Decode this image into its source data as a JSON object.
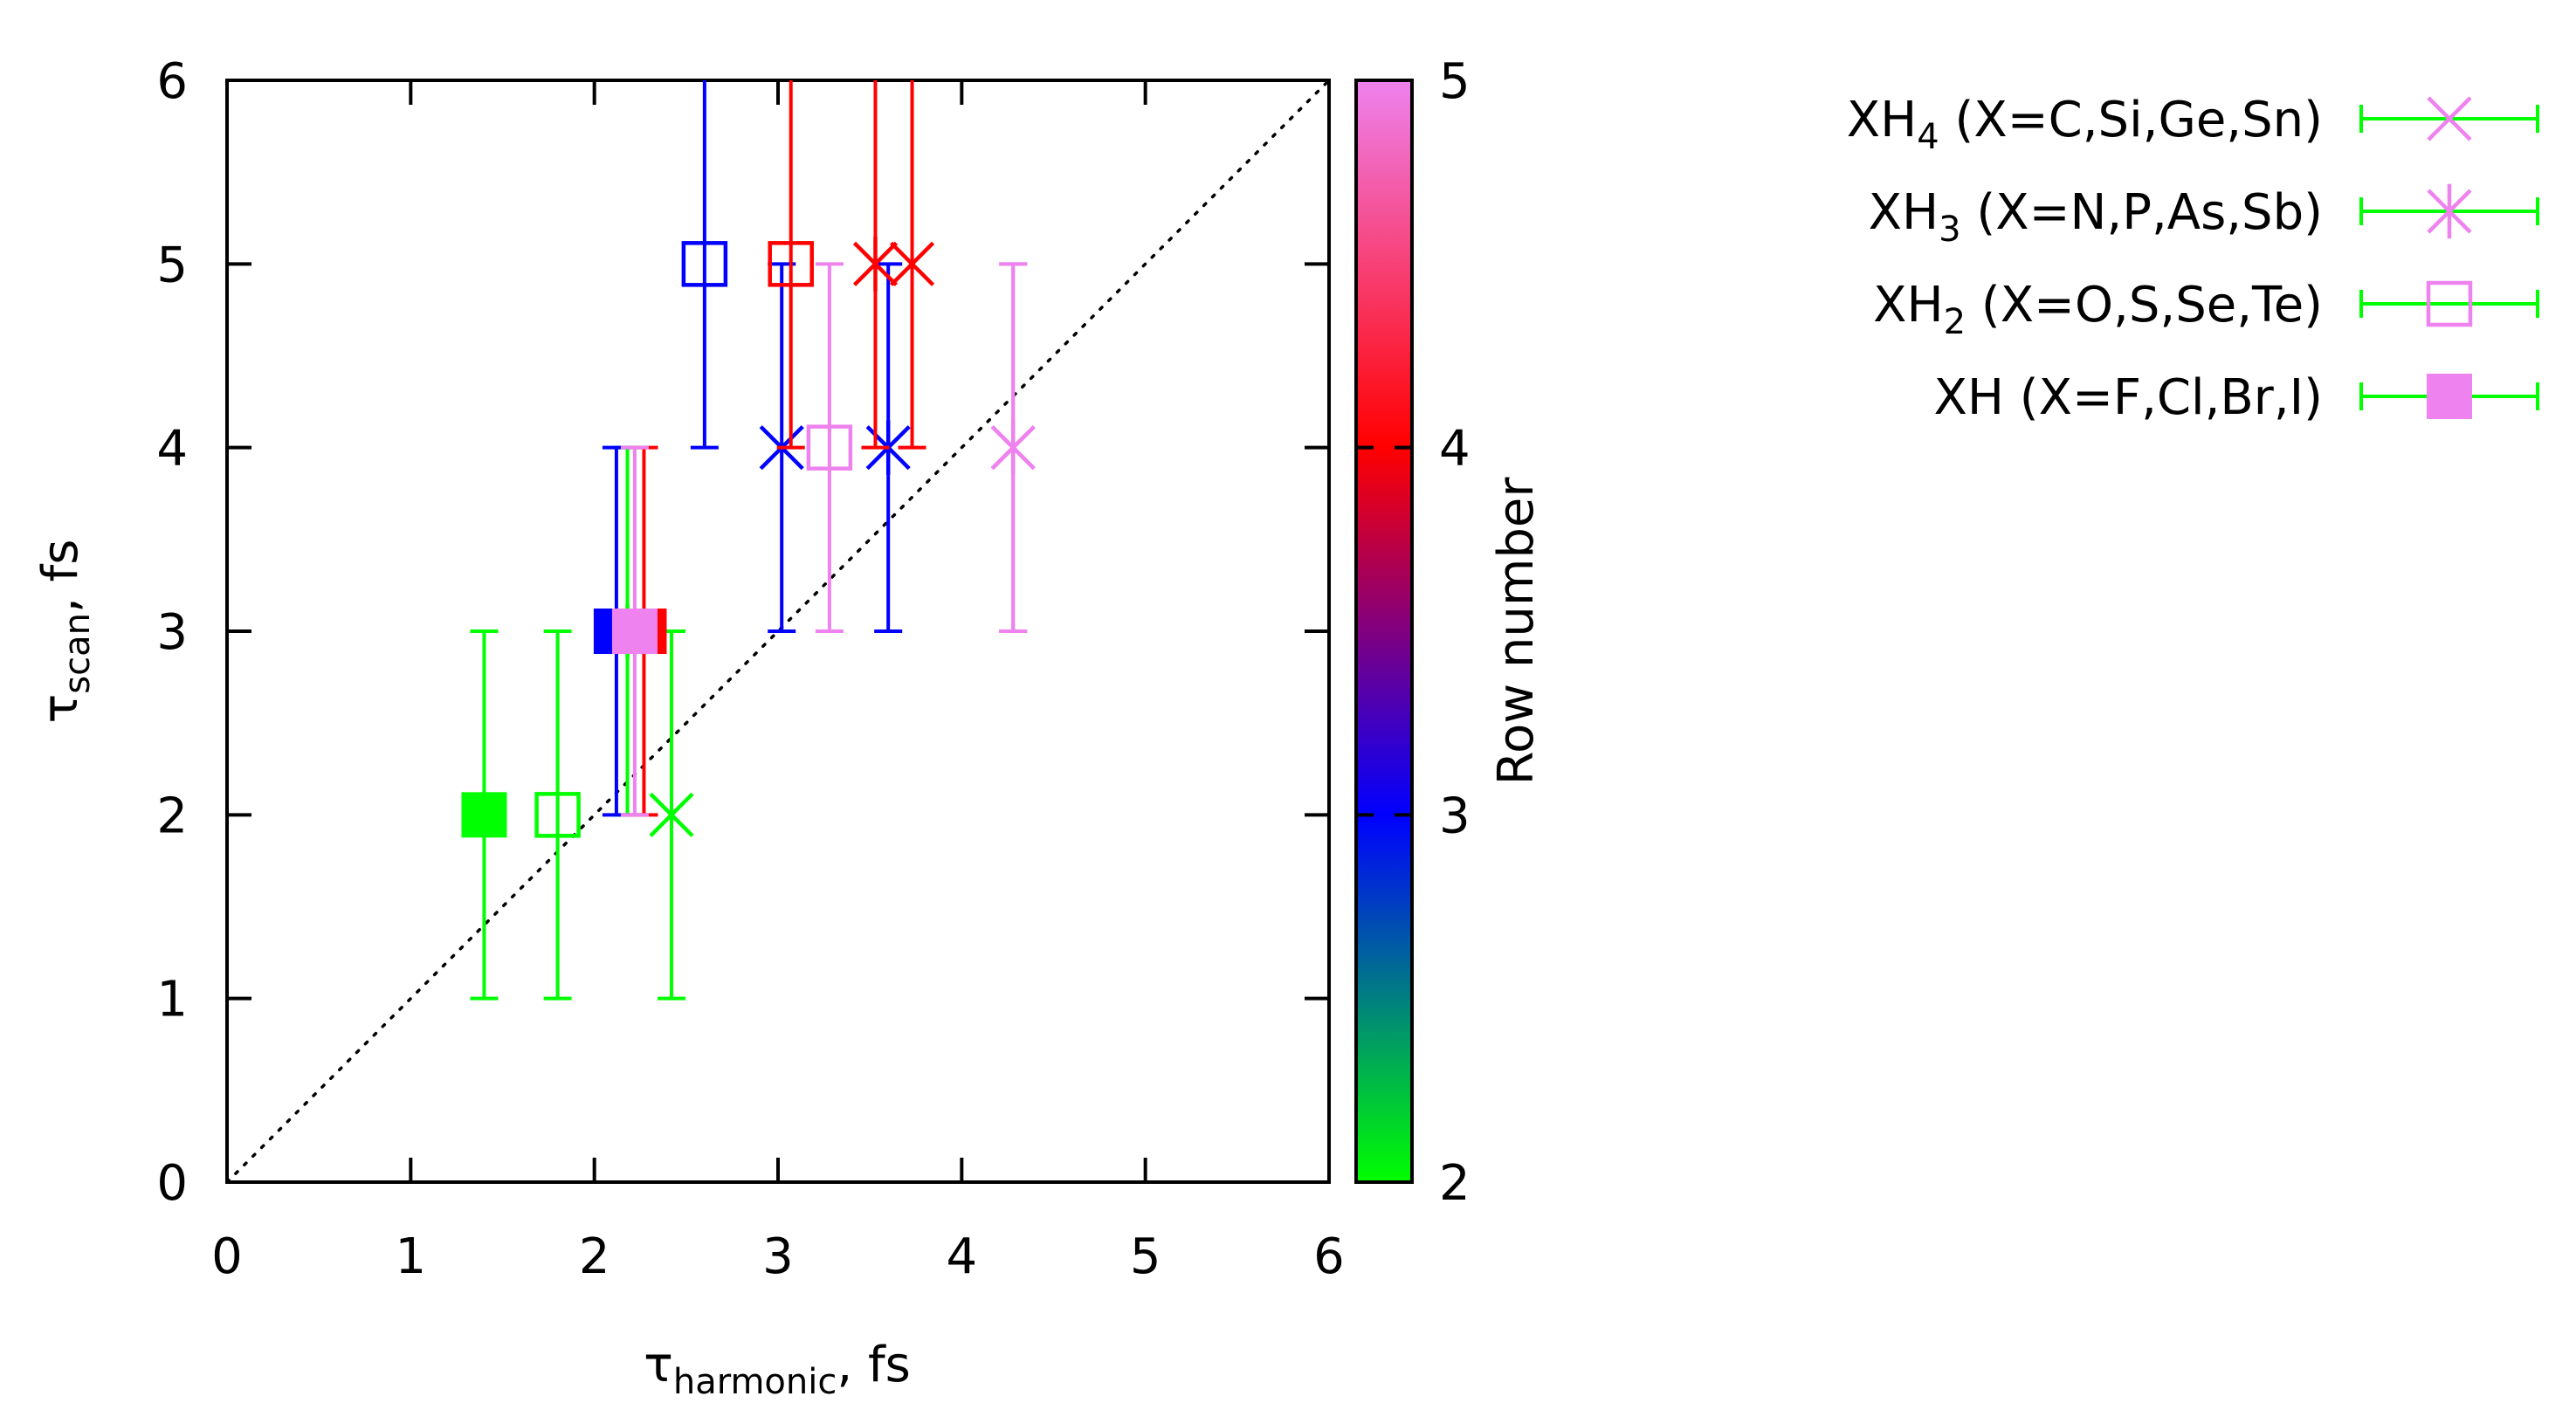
{
  "chart_data": {
    "type": "scatter",
    "xlabel": {
      "main": "τ",
      "sub": "harmonic",
      "unit": ", fs"
    },
    "ylabel": {
      "main": "τ",
      "sub": "scan",
      "unit": ", fs"
    },
    "xlim": [
      0,
      6
    ],
    "ylim": [
      0,
      6
    ],
    "x_ticks": [
      "0",
      "1",
      "2",
      "3",
      "4",
      "5",
      "6"
    ],
    "y_ticks": [
      "0",
      "1",
      "2",
      "3",
      "4",
      "5",
      "6"
    ],
    "diagonal": "y = x (dotted)",
    "colorbar": {
      "label": "Row number",
      "range": [
        2,
        5
      ],
      "ticks": [
        "2",
        "3",
        "4",
        "5"
      ],
      "stops": [
        "#00ff00",
        "#0000ff",
        "#ff0000",
        "#ee82ee"
      ]
    },
    "series": [
      {
        "name": "XH4 (X=C,Si,Ge,Sn)",
        "legend": {
          "pre": "XH",
          "sub": "4",
          "post": " (X=C,Si,Ge,Sn)"
        },
        "marker": "x",
        "points": [
          {
            "row": 2,
            "x": 2.42,
            "y": 2,
            "ylo": 1,
            "yhi": 3
          },
          {
            "row": 3,
            "x": 3.02,
            "y": 4,
            "ylo": 3,
            "yhi": 5
          },
          {
            "row": 4,
            "x": 3.73,
            "y": 5,
            "ylo": 4,
            "yhi": 6
          },
          {
            "row": 5,
            "x": 4.28,
            "y": 4,
            "ylo": 3,
            "yhi": 5
          }
        ]
      },
      {
        "name": "XH3 (X=N,P,As,Sb)",
        "legend": {
          "pre": "XH",
          "sub": "3",
          "post": " (X=N,P,As,Sb)"
        },
        "marker": "star",
        "points": [
          {
            "row": 2,
            "x": 2.18,
            "y": 3,
            "ylo": 2,
            "yhi": 4
          },
          {
            "row": 3,
            "x": 3.6,
            "y": 4,
            "ylo": 3,
            "yhi": 5
          },
          {
            "row": 4,
            "x": 3.53,
            "y": 5,
            "ylo": 4,
            "yhi": 6
          },
          {
            "row": 5,
            "x": 4.28,
            "y": 4,
            "ylo": 3,
            "yhi": 5
          }
        ]
      },
      {
        "name": "XH2 (X=O,S,Se,Te)",
        "legend": {
          "pre": "XH",
          "sub": "2",
          "post": " (X=O,S,Se,Te)"
        },
        "marker": "open-square",
        "points": [
          {
            "row": 2,
            "x": 1.8,
            "y": 2,
            "ylo": 1,
            "yhi": 3
          },
          {
            "row": 3,
            "x": 2.6,
            "y": 5,
            "ylo": 4,
            "yhi": 6
          },
          {
            "row": 4,
            "x": 3.07,
            "y": 5,
            "ylo": 4,
            "yhi": 6
          },
          {
            "row": 5,
            "x": 3.28,
            "y": 4,
            "ylo": 3,
            "yhi": 5
          }
        ]
      },
      {
        "name": "XH (X=F,Cl,Br,I)",
        "legend": {
          "pre": "XH",
          "sub": "",
          "post": " (X=F,Cl,Br,I)"
        },
        "marker": "filled-square",
        "points": [
          {
            "row": 2,
            "x": 1.4,
            "y": 2,
            "ylo": 1,
            "yhi": 3
          },
          {
            "row": 3,
            "x": 2.12,
            "y": 3,
            "ylo": 2,
            "yhi": 4
          },
          {
            "row": 4,
            "x": 2.27,
            "y": 3,
            "ylo": 2,
            "yhi": 4
          },
          {
            "row": 5,
            "x": 2.22,
            "y": 3,
            "ylo": 2,
            "yhi": 4
          }
        ]
      }
    ]
  }
}
